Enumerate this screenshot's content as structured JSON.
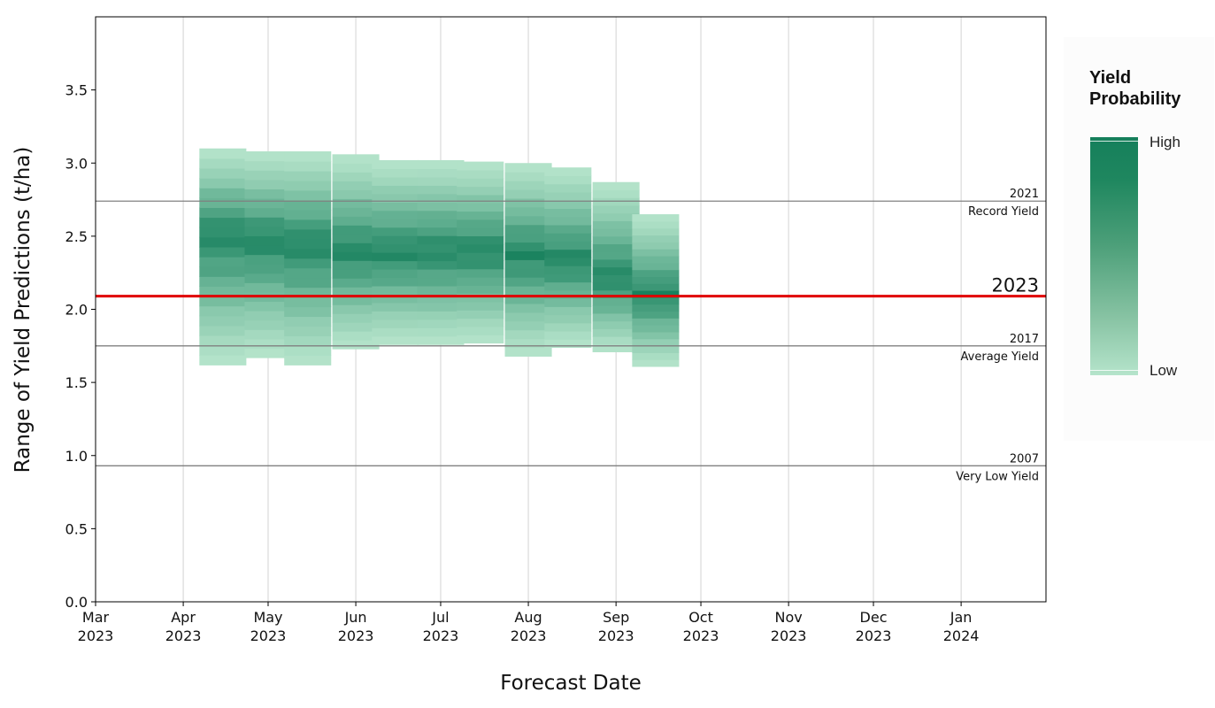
{
  "chart_data": {
    "type": "bar",
    "subtype": "floating probability range bars",
    "xlabel": "Forecast Date",
    "ylabel": "Range of Yield Predictions (t/ha)",
    "ylim": [
      0,
      4
    ],
    "yticks": [
      "0.0",
      "0.5",
      "1.0",
      "1.5",
      "2.0",
      "2.5",
      "3.0",
      "3.5"
    ],
    "xlim": [
      "2023-03-01",
      "2024-01-31"
    ],
    "xticks": [
      {
        "date": "2023-03-01",
        "month": "Mar",
        "year": "2023"
      },
      {
        "date": "2023-04-01",
        "month": "Apr",
        "year": "2023"
      },
      {
        "date": "2023-05-01",
        "month": "May",
        "year": "2023"
      },
      {
        "date": "2023-06-01",
        "month": "Jun",
        "year": "2023"
      },
      {
        "date": "2023-07-01",
        "month": "Jul",
        "year": "2023"
      },
      {
        "date": "2023-08-01",
        "month": "Aug",
        "year": "2023"
      },
      {
        "date": "2023-09-01",
        "month": "Sep",
        "year": "2023"
      },
      {
        "date": "2023-10-01",
        "month": "Oct",
        "year": "2023"
      },
      {
        "date": "2023-11-01",
        "month": "Nov",
        "year": "2023"
      },
      {
        "date": "2023-12-01",
        "month": "Dec",
        "year": "2023"
      },
      {
        "date": "2024-01-01",
        "month": "Jan",
        "year": "2024"
      }
    ],
    "grid": "vertical",
    "forecasts": [
      {
        "date": "2023-04-15",
        "low": 1.62,
        "high": 3.1,
        "mode": 2.52
      },
      {
        "date": "2023-05-01",
        "low": 1.67,
        "high": 3.08,
        "mode": 2.48
      },
      {
        "date": "2023-05-15",
        "low": 1.62,
        "high": 3.08,
        "mode": 2.45
      },
      {
        "date": "2023-06-01",
        "low": 1.73,
        "high": 3.06,
        "mode": 2.4
      },
      {
        "date": "2023-06-15",
        "low": 1.76,
        "high": 3.02,
        "mode": 2.4
      },
      {
        "date": "2023-07-01",
        "low": 1.76,
        "high": 3.02,
        "mode": 2.4
      },
      {
        "date": "2023-07-15",
        "low": 1.77,
        "high": 3.01,
        "mode": 2.4
      },
      {
        "date": "2023-08-01",
        "low": 1.68,
        "high": 3.0,
        "mode": 2.38
      },
      {
        "date": "2023-08-15",
        "low": 1.74,
        "high": 2.97,
        "mode": 2.34
      },
      {
        "date": "2023-09-01",
        "low": 1.71,
        "high": 2.87,
        "mode": 2.22
      },
      {
        "date": "2023-09-15",
        "low": 1.61,
        "high": 2.65,
        "mode": 2.1
      }
    ],
    "reference_lines": [
      {
        "value": 2.74,
        "year": "2021",
        "label": "Record Yield",
        "color": "#808080"
      },
      {
        "value": 1.75,
        "year": "2017",
        "label": "Average Yield",
        "color": "#808080"
      },
      {
        "value": 0.93,
        "year": "2007",
        "label": "Very Low Yield",
        "color": "#808080"
      }
    ],
    "current_line": {
      "value": 2.09,
      "label": "2023",
      "color": "#e00000"
    },
    "colors": {
      "high": "#157f5b",
      "low": "#b5e4cb"
    }
  },
  "legend": {
    "title": "Yield\nProbability",
    "high_label": "High",
    "low_label": "Low"
  }
}
